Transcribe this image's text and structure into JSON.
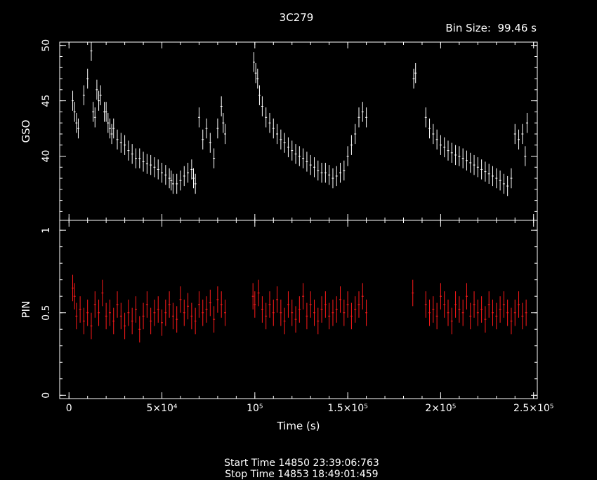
{
  "chart_data": [
    {
      "type": "scatter",
      "panel": "top",
      "title": "3C279",
      "annotation": "Bin Size:  99.46 s",
      "ylabel": "GSO",
      "xlabel": "",
      "xlim": [
        -5000,
        252000
      ],
      "ylim": [
        34.2,
        50.3
      ],
      "yticks": [
        40,
        45,
        50
      ],
      "series": [
        {
          "color": "#ffffff",
          "x": [
            2000,
            3000,
            4000,
            5000,
            8000,
            10000,
            12000,
            13000,
            14000,
            15000,
            16000,
            17000,
            19000,
            20000,
            21000,
            22000,
            23000,
            24000,
            26000,
            28000,
            30000,
            32000,
            34000,
            36000,
            38000,
            40000,
            42000,
            44000,
            46000,
            48000,
            50000,
            52000,
            54000,
            55000,
            56000,
            58000,
            60000,
            62000,
            64000,
            66000,
            67000,
            68000,
            70000,
            72000,
            74000,
            76000,
            78000,
            80000,
            82000,
            83000,
            84000,
            99500,
            100500,
            101500,
            102500,
            104000,
            106000,
            108000,
            110000,
            112000,
            114000,
            116000,
            118000,
            120000,
            122000,
            124000,
            126000,
            128000,
            130000,
            132000,
            134000,
            136000,
            138000,
            140000,
            142000,
            144000,
            146000,
            148000,
            150000,
            152000,
            154000,
            156000,
            158000,
            160000,
            185500,
            186500,
            192000,
            194000,
            196000,
            198000,
            200000,
            202000,
            204000,
            206000,
            208000,
            210000,
            212000,
            214000,
            216000,
            218000,
            220000,
            222000,
            224000,
            226000,
            228000,
            230000,
            232000,
            234000,
            236000,
            238000,
            240000,
            242000,
            244000,
            245500,
            246500
          ],
          "y": [
            45,
            44,
            43,
            42.5,
            45.5,
            47,
            49.5,
            44,
            43.5,
            46,
            45,
            45.5,
            44,
            44,
            43,
            42.5,
            42,
            42.5,
            41.5,
            41.2,
            41,
            40.5,
            40.2,
            39.8,
            39.8,
            39.5,
            39.3,
            39.2,
            39,
            38.8,
            38.5,
            38.3,
            38,
            37.8,
            37.5,
            37.5,
            37.8,
            38.2,
            38.5,
            38.8,
            38,
            37.5,
            43.5,
            41.5,
            42.5,
            41.2,
            39.8,
            42.5,
            44.5,
            43,
            42,
            48.5,
            47.5,
            47,
            45.5,
            44.5,
            43.5,
            43,
            42.5,
            42,
            41.5,
            41.2,
            40.8,
            40.5,
            40.2,
            40,
            39.8,
            39.5,
            39.2,
            39,
            38.7,
            38.5,
            38.5,
            38.3,
            38,
            38.2,
            38.5,
            38.7,
            40,
            41,
            42,
            43.5,
            44,
            43.5,
            47,
            47.5,
            43.5,
            42.5,
            42,
            41.5,
            41,
            40.8,
            40.5,
            40.3,
            40.1,
            40,
            39.8,
            39.6,
            39.4,
            39.2,
            39,
            38.8,
            38.6,
            38.4,
            38.2,
            38,
            37.8,
            37.5,
            37.3,
            38,
            42,
            41.5,
            42,
            40,
            43
          ]
        }
      ]
    },
    {
      "type": "scatter",
      "panel": "bottom",
      "ylabel": "PIN",
      "xlabel": "Time (s)",
      "xlim": [
        -5000,
        252000
      ],
      "ylim": [
        -0.02,
        1.06
      ],
      "xticks": [
        {
          "value": 0,
          "label": "0"
        },
        {
          "value": 50000,
          "label": "5×10⁴"
        },
        {
          "value": 100000,
          "label": "10⁵"
        },
        {
          "value": 150000,
          "label": "1.5×10⁵"
        },
        {
          "value": 200000,
          "label": "2×10⁵"
        },
        {
          "value": 250000,
          "label": "2.5×10⁵"
        }
      ],
      "yticks": [
        {
          "value": 0,
          "label": "0"
        },
        {
          "value": 0.5,
          "label": "0.5"
        },
        {
          "value": 1,
          "label": "1"
        }
      ],
      "series": [
        {
          "color": "#ff1a1a",
          "x": [
            2000,
            3000,
            4000,
            6000,
            8000,
            10000,
            12000,
            14000,
            16000,
            18000,
            20000,
            22000,
            24000,
            26000,
            28000,
            30000,
            32000,
            34000,
            36000,
            38000,
            40000,
            42000,
            44000,
            46000,
            48000,
            50000,
            52000,
            54000,
            56000,
            58000,
            60000,
            62000,
            64000,
            66000,
            68000,
            70000,
            72000,
            74000,
            76000,
            78000,
            80000,
            82000,
            84000,
            99000,
            100000,
            102000,
            104000,
            106000,
            108000,
            110000,
            112000,
            114000,
            116000,
            118000,
            120000,
            122000,
            124000,
            126000,
            128000,
            130000,
            132000,
            134000,
            136000,
            138000,
            140000,
            142000,
            144000,
            146000,
            148000,
            150000,
            152000,
            154000,
            156000,
            158000,
            160000,
            185000,
            192000,
            194000,
            196000,
            198000,
            200000,
            202000,
            204000,
            206000,
            208000,
            210000,
            212000,
            214000,
            216000,
            218000,
            220000,
            222000,
            224000,
            226000,
            228000,
            230000,
            232000,
            234000,
            236000,
            238000,
            240000,
            242000,
            244000,
            246000
          ],
          "y": [
            0.65,
            0.6,
            0.48,
            0.52,
            0.45,
            0.5,
            0.42,
            0.55,
            0.5,
            0.62,
            0.48,
            0.5,
            0.45,
            0.55,
            0.48,
            0.42,
            0.5,
            0.45,
            0.52,
            0.4,
            0.48,
            0.55,
            0.45,
            0.5,
            0.52,
            0.44,
            0.5,
            0.55,
            0.48,
            0.46,
            0.58,
            0.5,
            0.54,
            0.48,
            0.45,
            0.55,
            0.5,
            0.52,
            0.56,
            0.46,
            0.58,
            0.55,
            0.5,
            0.6,
            0.55,
            0.62,
            0.52,
            0.48,
            0.55,
            0.5,
            0.58,
            0.5,
            0.45,
            0.55,
            0.5,
            0.46,
            0.52,
            0.6,
            0.48,
            0.55,
            0.5,
            0.45,
            0.52,
            0.55,
            0.48,
            0.5,
            0.52,
            0.58,
            0.5,
            0.55,
            0.48,
            0.52,
            0.55,
            0.6,
            0.5,
            0.62,
            0.55,
            0.5,
            0.52,
            0.48,
            0.6,
            0.55,
            0.5,
            0.45,
            0.55,
            0.52,
            0.5,
            0.6,
            0.48,
            0.55,
            0.5,
            0.52,
            0.46,
            0.55,
            0.5,
            0.48,
            0.52,
            0.55,
            0.5,
            0.45,
            0.5,
            0.55,
            0.48,
            0.5
          ]
        }
      ]
    }
  ],
  "footer": {
    "start": "Start Time 14850 23:39:06:763",
    "stop": "Stop Time 14853 18:49:01:459"
  }
}
